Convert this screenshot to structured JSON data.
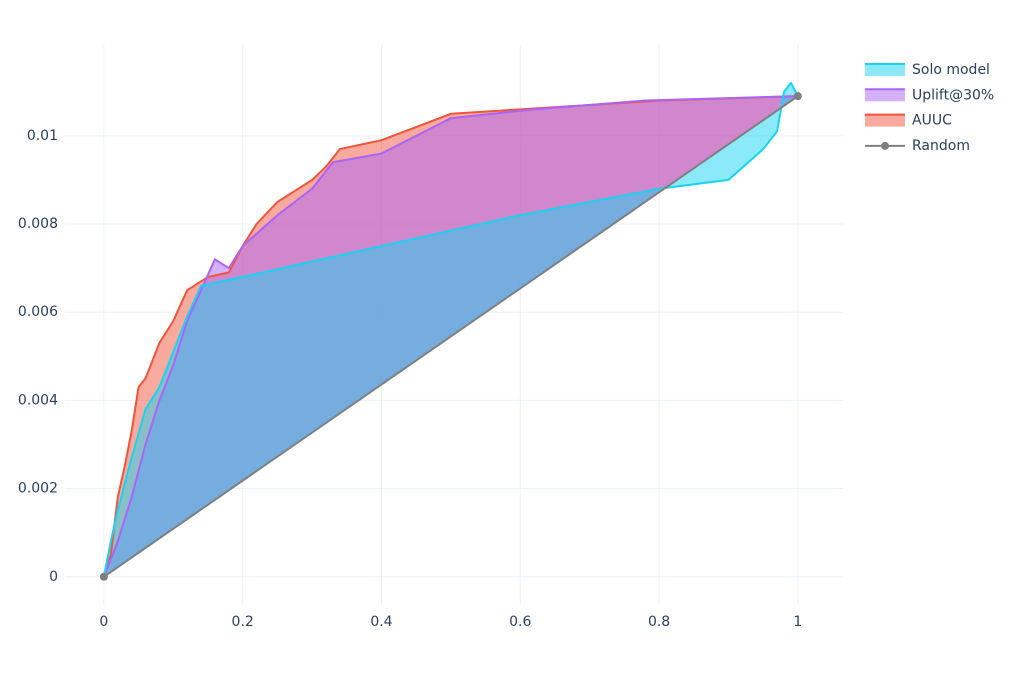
{
  "chart_data": {
    "type": "line",
    "xlim": [
      -0.056,
      1.065
    ],
    "ylim": [
      -0.00064,
      0.01206
    ],
    "xticks": [
      0,
      0.2,
      0.4,
      0.6,
      0.8,
      1
    ],
    "yticks": [
      0,
      0.002,
      0.004,
      0.006,
      0.008,
      0.01
    ],
    "grid": true,
    "legend": "top-right",
    "series": [
      {
        "name": "AUUC",
        "color": "#ef553b",
        "fill": true,
        "markers": false,
        "x": [
          0,
          0.01,
          0.02,
          0.03,
          0.04,
          0.05,
          0.06,
          0.08,
          0.1,
          0.12,
          0.15,
          0.18,
          0.2,
          0.22,
          0.25,
          0.3,
          0.32,
          0.34,
          0.4,
          0.45,
          0.5,
          0.6,
          0.7,
          0.8,
          1
        ],
        "values": [
          0,
          0.0005,
          0.0018,
          0.0025,
          0.0033,
          0.0043,
          0.0045,
          0.0053,
          0.0058,
          0.0065,
          0.0068,
          0.0069,
          0.0075,
          0.008,
          0.0085,
          0.009,
          0.0093,
          0.0097,
          0.0099,
          0.0102,
          0.0105,
          0.0106,
          0.0107,
          0.0108,
          0.0109
        ]
      },
      {
        "name": "Uplift@30%",
        "color": "#ab63fa",
        "fill": true,
        "markers": false,
        "x": [
          0,
          0.02,
          0.04,
          0.06,
          0.08,
          0.1,
          0.12,
          0.14,
          0.16,
          0.18,
          0.2,
          0.25,
          0.3,
          0.33,
          0.4,
          0.45,
          0.5,
          0.62,
          0.78,
          1
        ],
        "values": [
          0,
          0.0008,
          0.0018,
          0.003,
          0.004,
          0.0048,
          0.0058,
          0.0065,
          0.0072,
          0.007,
          0.0075,
          0.0082,
          0.0088,
          0.0094,
          0.0096,
          0.01,
          0.0104,
          0.0106,
          0.0108,
          0.0109
        ]
      },
      {
        "name": "Solo model",
        "color": "#19d3f3",
        "fill": true,
        "markers": false,
        "x": [
          0,
          0.01,
          0.02,
          0.04,
          0.06,
          0.08,
          0.1,
          0.12,
          0.14,
          0.2,
          0.4,
          0.6,
          0.8,
          0.9,
          0.95,
          0.97,
          0.98,
          0.99,
          1
        ],
        "values": [
          0,
          0.0008,
          0.0015,
          0.0027,
          0.0038,
          0.0043,
          0.0051,
          0.0059,
          0.0066,
          0.0068,
          0.0075,
          0.0082,
          0.0088,
          0.009,
          0.0097,
          0.0101,
          0.011,
          0.0112,
          0.0109
        ]
      },
      {
        "name": "Random",
        "color": "#7f7f7f",
        "fill": false,
        "markers": true,
        "x": [
          0,
          1
        ],
        "values": [
          0,
          0.0109
        ]
      }
    ],
    "legend_order": [
      2,
      1,
      0,
      3
    ]
  }
}
